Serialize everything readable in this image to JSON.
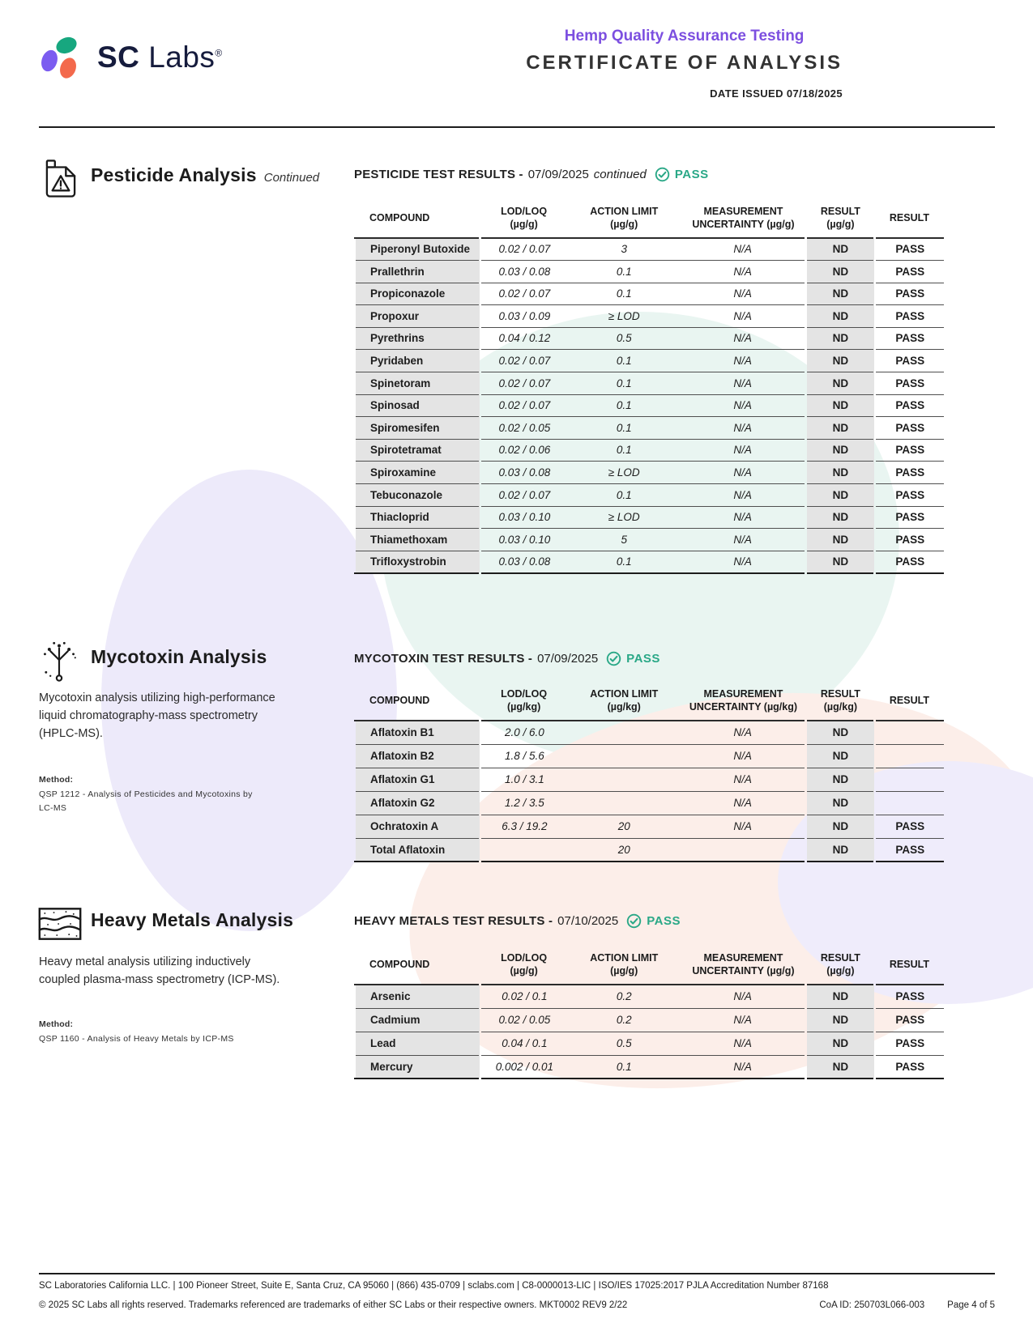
{
  "theme": {
    "purple": "#7C4FE0",
    "teal": "#2AA887",
    "navy": "#161C3D",
    "logo_purple": "#7B5CF0",
    "logo_green": "#17A77F",
    "logo_orange": "#F3694C",
    "row_gray": "#E4E4E4"
  },
  "header": {
    "brand_sc": "SC",
    "brand_labs": "Labs",
    "registered": "®",
    "program_title": "Hemp Quality Assurance Testing",
    "certificate_title": "CERTIFICATE OF ANALYSIS",
    "date_issued": "DATE ISSUED 07/18/2025"
  },
  "sections": {
    "pesticide": {
      "title": "Pesticide Analysis",
      "title_note": "Continued",
      "results_label": "PESTICIDE TEST RESULTS -",
      "results_date": "07/09/2025",
      "results_note": "continued",
      "status": "PASS",
      "table": {
        "columns": [
          {
            "l1": "COMPOUND",
            "l2": ""
          },
          {
            "l1": "LOD/LOQ",
            "l2": "(µg/g)"
          },
          {
            "l1": "ACTION LIMIT",
            "l2": "(µg/g)"
          },
          {
            "l1": "MEASUREMENT",
            "l2": "UNCERTAINTY (µg/g)"
          },
          {
            "l1": "RESULT",
            "l2": "(µg/g)"
          },
          {
            "l1": "RESULT",
            "l2": ""
          }
        ],
        "rows": [
          [
            "Piperonyl Butoxide",
            "0.02 / 0.07",
            "3",
            "N/A",
            "ND",
            "PASS"
          ],
          [
            "Prallethrin",
            "0.03 / 0.08",
            "0.1",
            "N/A",
            "ND",
            "PASS"
          ],
          [
            "Propiconazole",
            "0.02 / 0.07",
            "0.1",
            "N/A",
            "ND",
            "PASS"
          ],
          [
            "Propoxur",
            "0.03 / 0.09",
            "≥ LOD",
            "N/A",
            "ND",
            "PASS"
          ],
          [
            "Pyrethrins",
            "0.04 / 0.12",
            "0.5",
            "N/A",
            "ND",
            "PASS"
          ],
          [
            "Pyridaben",
            "0.02 / 0.07",
            "0.1",
            "N/A",
            "ND",
            "PASS"
          ],
          [
            "Spinetoram",
            "0.02 / 0.07",
            "0.1",
            "N/A",
            "ND",
            "PASS"
          ],
          [
            "Spinosad",
            "0.02 / 0.07",
            "0.1",
            "N/A",
            "ND",
            "PASS"
          ],
          [
            "Spiromesifen",
            "0.02 / 0.05",
            "0.1",
            "N/A",
            "ND",
            "PASS"
          ],
          [
            "Spirotetramat",
            "0.02 / 0.06",
            "0.1",
            "N/A",
            "ND",
            "PASS"
          ],
          [
            "Spiroxamine",
            "0.03 / 0.08",
            "≥ LOD",
            "N/A",
            "ND",
            "PASS"
          ],
          [
            "Tebuconazole",
            "0.02 / 0.07",
            "0.1",
            "N/A",
            "ND",
            "PASS"
          ],
          [
            "Thiacloprid",
            "0.03 / 0.10",
            "≥ LOD",
            "N/A",
            "ND",
            "PASS"
          ],
          [
            "Thiamethoxam",
            "0.03 / 0.10",
            "5",
            "N/A",
            "ND",
            "PASS"
          ],
          [
            "Trifloxystrobin",
            "0.03 / 0.08",
            "0.1",
            "N/A",
            "ND",
            "PASS"
          ]
        ]
      }
    },
    "mycotoxin": {
      "title": "Mycotoxin Analysis",
      "description": "Mycotoxin analysis utilizing high-performance\nliquid chromatography-mass spectrometry\n(HPLC-MS).",
      "method_label": "Method:",
      "method_text": "QSP 1212 - Analysis of Pesticides and Mycotoxins by\nLC-MS",
      "results_label": "MYCOTOXIN TEST RESULTS -",
      "results_date": "07/09/2025",
      "status": "PASS",
      "table": {
        "columns": [
          {
            "l1": "COMPOUND",
            "l2": ""
          },
          {
            "l1": "LOD/LOQ",
            "l2": "(µg/kg)"
          },
          {
            "l1": "ACTION LIMIT",
            "l2": "(µg/kg)"
          },
          {
            "l1": "MEASUREMENT",
            "l2": "UNCERTAINTY (µg/kg)"
          },
          {
            "l1": "RESULT",
            "l2": "(µg/kg)"
          },
          {
            "l1": "RESULT",
            "l2": ""
          }
        ],
        "rows": [
          [
            "Aflatoxin B1",
            "2.0 / 6.0",
            "",
            "N/A",
            "ND",
            ""
          ],
          [
            "Aflatoxin B2",
            "1.8 / 5.6",
            "",
            "N/A",
            "ND",
            ""
          ],
          [
            "Aflatoxin G1",
            "1.0 / 3.1",
            "",
            "N/A",
            "ND",
            ""
          ],
          [
            "Aflatoxin G2",
            "1.2 / 3.5",
            "",
            "N/A",
            "ND",
            ""
          ],
          [
            "Ochratoxin A",
            "6.3 / 19.2",
            "20",
            "N/A",
            "ND",
            "PASS"
          ],
          [
            "Total Aflatoxin",
            "",
            "20",
            "",
            "ND",
            "PASS"
          ]
        ]
      }
    },
    "heavy_metals": {
      "title": "Heavy Metals Analysis",
      "description": "Heavy metal analysis utilizing inductively\ncoupled plasma-mass spectrometry (ICP-MS).",
      "method_label": "Method:",
      "method_text": "QSP 1160 - Analysis of Heavy Metals by ICP-MS",
      "results_label": "HEAVY METALS TEST RESULTS -",
      "results_date": "07/10/2025",
      "status": "PASS",
      "table": {
        "columns": [
          {
            "l1": "COMPOUND",
            "l2": ""
          },
          {
            "l1": "LOD/LOQ",
            "l2": "(µg/g)"
          },
          {
            "l1": "ACTION LIMIT",
            "l2": "(µg/g)"
          },
          {
            "l1": "MEASUREMENT",
            "l2": "UNCERTAINTY (µg/g)"
          },
          {
            "l1": "RESULT",
            "l2": "(µg/g)"
          },
          {
            "l1": "RESULT",
            "l2": ""
          }
        ],
        "rows": [
          [
            "Arsenic",
            "0.02 / 0.1",
            "0.2",
            "N/A",
            "ND",
            "PASS"
          ],
          [
            "Cadmium",
            "0.02 / 0.05",
            "0.2",
            "N/A",
            "ND",
            "PASS"
          ],
          [
            "Lead",
            "0.04 / 0.1",
            "0.5",
            "N/A",
            "ND",
            "PASS"
          ],
          [
            "Mercury",
            "0.002 / 0.01",
            "0.1",
            "N/A",
            "ND",
            "PASS"
          ]
        ]
      }
    }
  },
  "footer": {
    "line1": "SC Laboratories California LLC. | 100 Pioneer Street, Suite E, Santa Cruz, CA 95060 | (866) 435-0709 | sclabs.com | C8-0000013-LIC | ISO/IES 17025:2017 PJLA Accreditation Number 87168",
    "line2": "© 2025 SC Labs all rights reserved. Trademarks referenced are trademarks of either SC Labs or their respective owners. MKT0002 REV9 2/22",
    "coa_id": "CoA ID: 250703L066-003",
    "page": "Page 4 of 5"
  }
}
